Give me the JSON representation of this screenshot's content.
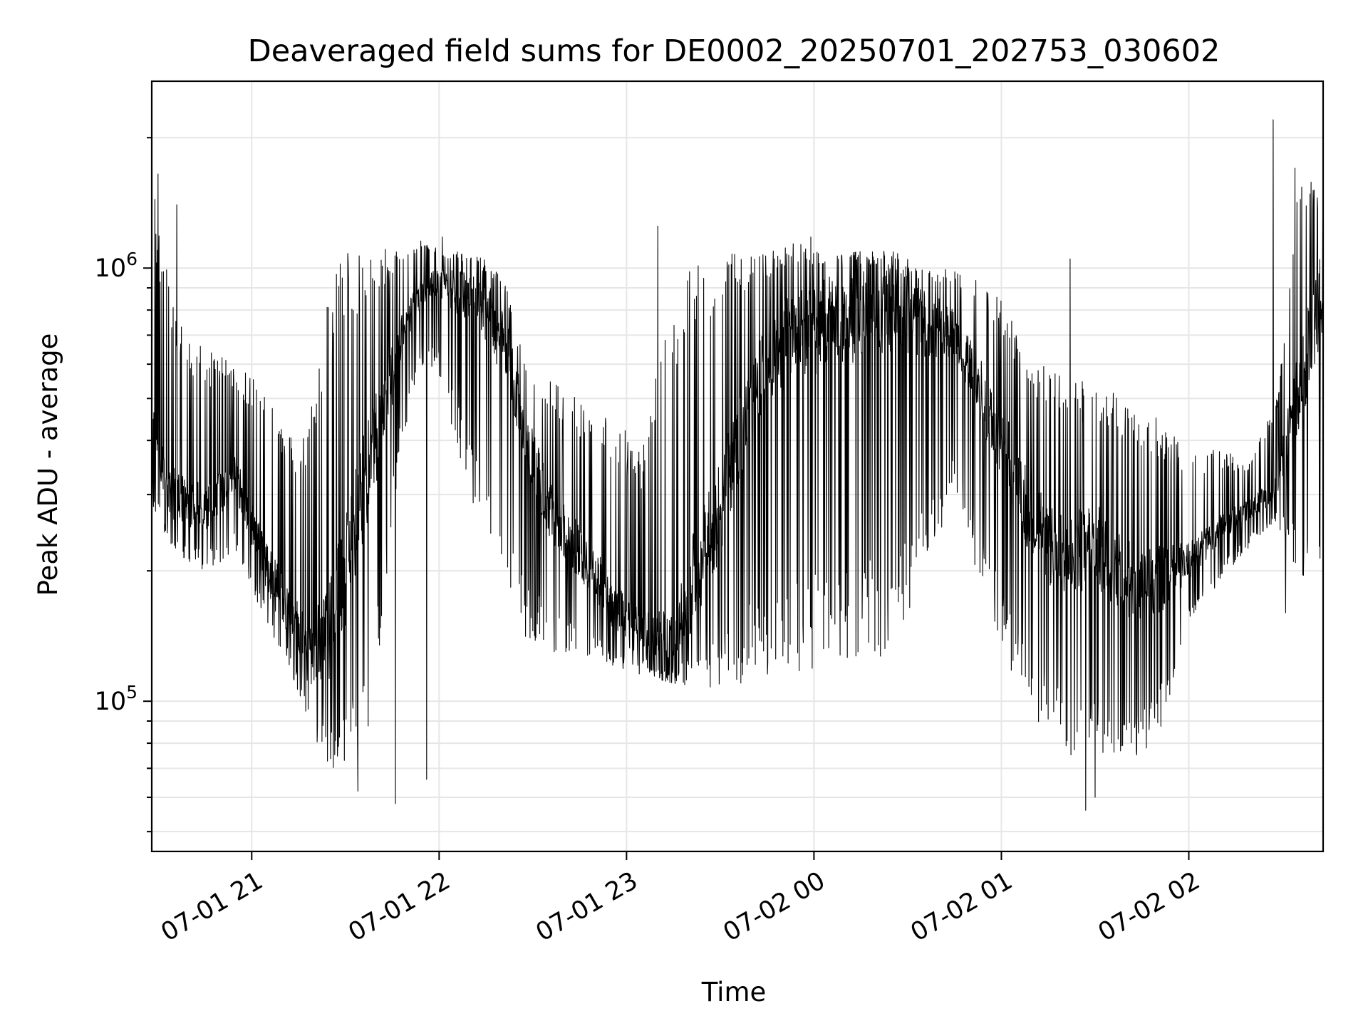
{
  "chart_data": {
    "type": "line",
    "title": "Deaveraged field sums for DE0002_20250701_202753_030602",
    "xlabel": "Time",
    "ylabel": "Peak ADU - average",
    "yscale": "log",
    "ylim": [
      45000,
      2700000
    ],
    "xlim": [
      "2025-07-01 20:28:00",
      "2025-07-02 02:43:00"
    ],
    "x_ticks": [
      {
        "value": "2025-07-01 21:00",
        "label": "07-01 21"
      },
      {
        "value": "2025-07-01 22:00",
        "label": "07-01 22"
      },
      {
        "value": "2025-07-01 23:00",
        "label": "07-01 23"
      },
      {
        "value": "2025-07-02 00:00",
        "label": "07-02 00"
      },
      {
        "value": "2025-07-02 01:00",
        "label": "07-02 01"
      },
      {
        "value": "2025-07-02 02:00",
        "label": "07-02 02"
      }
    ],
    "y_ticks": [
      {
        "value": 100000,
        "base": "10",
        "exp": "5"
      },
      {
        "value": 1000000,
        "base": "10",
        "exp": "6"
      }
    ],
    "grid": true,
    "line_color": "#000000",
    "series": [
      {
        "x": [
          "20:28",
          "20:35",
          "20:45",
          "20:55",
          "21:05",
          "21:12",
          "21:18",
          "21:24",
          "21:30",
          "21:36",
          "21:42",
          "21:48",
          "21:55",
          "22:00",
          "22:10",
          "22:20",
          "22:28",
          "22:35",
          "22:45",
          "22:55",
          "23:05",
          "23:15",
          "23:22",
          "23:28",
          "23:35",
          "23:45",
          "23:55",
          "00:05",
          "00:15",
          "00:25",
          "00:35",
          "00:45",
          "00:52",
          "01:00",
          "01:08",
          "01:15",
          "01:22",
          "01:30",
          "01:40",
          "01:50",
          "02:00",
          "02:10",
          "02:20",
          "02:28",
          "02:35",
          "02:43"
        ],
        "y": [
          400000,
          300000,
          280000,
          330000,
          200000,
          160000,
          130000,
          140000,
          200000,
          320000,
          460000,
          700000,
          900000,
          920000,
          850000,
          700000,
          400000,
          280000,
          220000,
          170000,
          140000,
          130000,
          200000,
          250000,
          380000,
          600000,
          700000,
          750000,
          780000,
          800000,
          750000,
          700000,
          550000,
          400000,
          280000,
          230000,
          220000,
          230000,
          190000,
          190000,
          210000,
          250000,
          280000,
          310000,
          520000,
          900000
        ],
        "lo": [
          280000,
          220000,
          200000,
          220000,
          150000,
          120000,
          90000,
          70000,
          68000,
          75000,
          150000,
          400000,
          600000,
          550000,
          300000,
          160000,
          140000,
          130000,
          130000,
          120000,
          115000,
          110000,
          108000,
          105000,
          108000,
          112000,
          112000,
          115000,
          120000,
          130000,
          180000,
          300000,
          200000,
          130000,
          95000,
          85000,
          75000,
          70000,
          72000,
          80000,
          150000,
          190000,
          230000,
          260000,
          190000,
          180000
        ],
        "hi": [
          1600000,
          800000,
          650000,
          600000,
          520000,
          450000,
          420000,
          850000,
          1100000,
          1100000,
          1100000,
          1150000,
          1200000,
          1100000,
          1100000,
          1000000,
          600000,
          550000,
          500000,
          450000,
          400000,
          900000,
          1100000,
          1100000,
          1100000,
          1100000,
          1150000,
          1100000,
          1100000,
          1100000,
          1000000,
          1000000,
          950000,
          850000,
          650000,
          580000,
          550000,
          550000,
          500000,
          450000,
          380000,
          380000,
          360000,
          500000,
          1800000,
          1400000
        ]
      }
    ],
    "peaks": [
      {
        "x": "20:30",
        "y": 1650000
      },
      {
        "x": "20:36",
        "y": 1400000
      },
      {
        "x": "21:00",
        "y": 230000
      },
      {
        "x": "21:46",
        "y": 160000
      },
      {
        "x": "22:01",
        "y": 1180000
      },
      {
        "x": "23:10",
        "y": 1250000
      },
      {
        "x": "23:59",
        "y": 1180000
      },
      {
        "x": "01:22",
        "y": 1050000
      },
      {
        "x": "02:27",
        "y": 2200000
      },
      {
        "x": "02:34",
        "y": 1700000
      }
    ],
    "dips": [
      {
        "x": "21:34",
        "y": 62000
      },
      {
        "x": "21:46",
        "y": 58000
      },
      {
        "x": "21:56",
        "y": 66000
      },
      {
        "x": "01:27",
        "y": 56000
      },
      {
        "x": "01:30",
        "y": 60000
      },
      {
        "x": "02:31",
        "y": 160000
      }
    ]
  }
}
